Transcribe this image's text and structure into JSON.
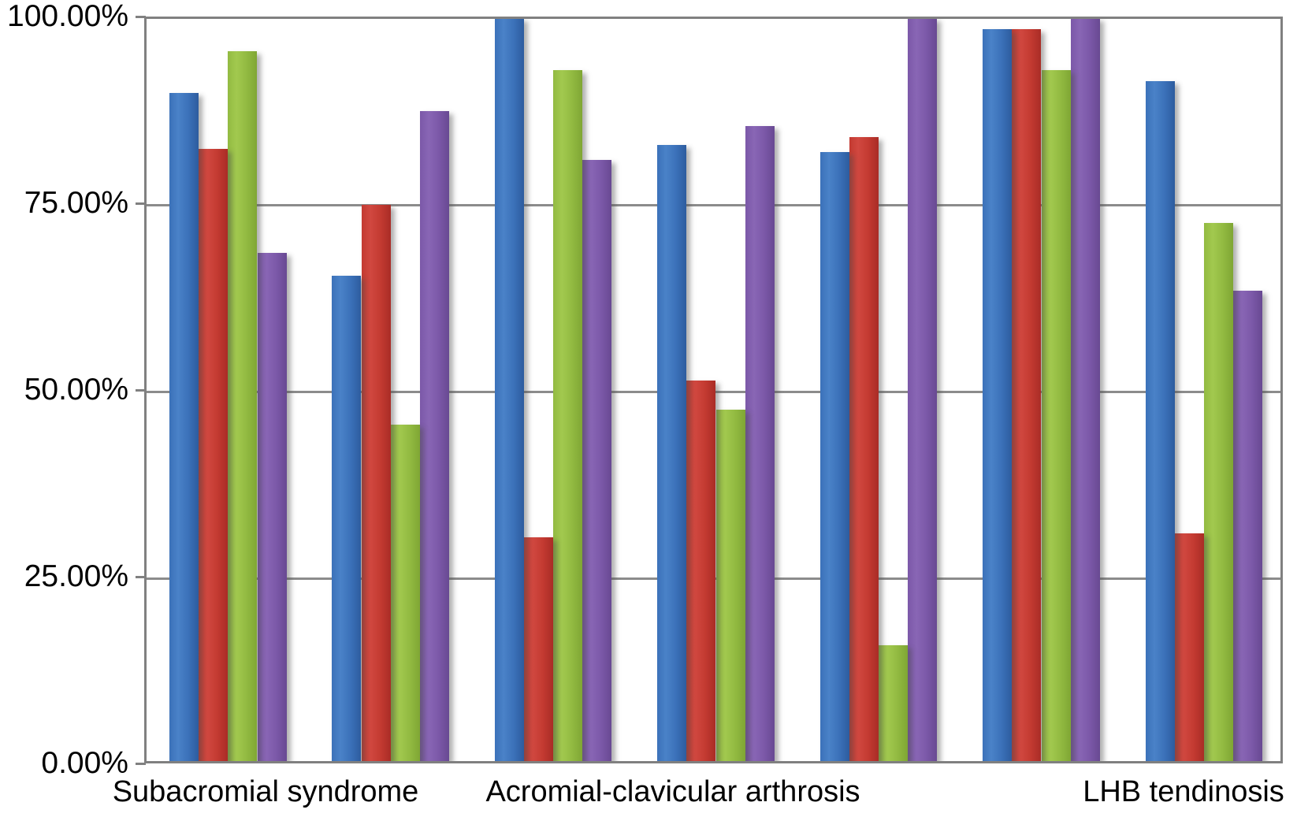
{
  "figure": {
    "kind": "grouped vertical bar chart, no title, no legend",
    "background_color": "#ffffff",
    "text_color": "#000000",
    "plot_border_color": "#808080",
    "gridline_color": "#8c8c8c"
  },
  "y_axis": {
    "tick_labels": [
      "100.00%",
      "75.00%",
      "50.00%",
      "25.00%",
      "0.00%"
    ]
  },
  "x_axis": {
    "visible_labels": [
      "Subacromial syndrome",
      "Acromial-clavicular arthrosis",
      "LHB tendinosis"
    ]
  },
  "chart_data": {
    "type": "bar",
    "title": "",
    "xlabel": "",
    "ylabel": "",
    "ylim": [
      0,
      100
    ],
    "y_tick_step": 25,
    "y_tick_format": "0.00%",
    "grid": true,
    "legend_position": "none",
    "categories": [
      "Subacromial syndrome",
      "",
      "",
      "Acromial-clavicular arthrosis",
      "",
      "",
      "LHB tendinosis"
    ],
    "label_interval_note": "axis labels are shown only for categories 1, 4 and 7",
    "series": [
      {
        "color": "#3b71b9",
        "color_light": "#4a82c8",
        "color_dark": "#2d5c9e",
        "values": [
          89.5,
          65.0,
          99.5,
          82.5,
          81.5,
          98.0,
          91.0
        ]
      },
      {
        "color": "#c33a31",
        "color_light": "#d14840",
        "color_dark": "#a92c26",
        "values": [
          82.0,
          74.5,
          30.0,
          51.0,
          83.5,
          98.0,
          30.5
        ]
      },
      {
        "color": "#92ba41",
        "color_light": "#a2c94f",
        "color_dark": "#7fa634",
        "values": [
          95.0,
          45.0,
          92.5,
          47.0,
          15.5,
          92.5,
          72.0
        ]
      },
      {
        "color": "#7b58a8",
        "color_light": "#8966b5",
        "color_dark": "#684992",
        "values": [
          68.0,
          87.0,
          80.5,
          85.0,
          99.5,
          99.5,
          63.0
        ]
      }
    ]
  }
}
